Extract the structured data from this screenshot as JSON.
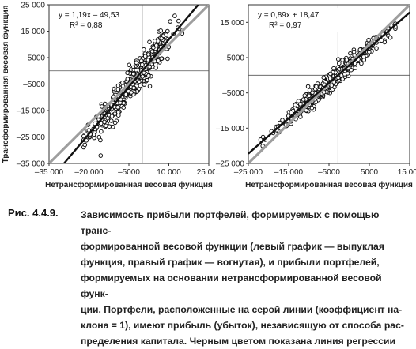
{
  "chart_data": [
    {
      "type": "scatter",
      "xlabel": "Нетрансформированная весовая функция",
      "ylabel": "Трансформированная весовая функция",
      "xlim": [
        -35000,
        25000
      ],
      "ylim": [
        -35000,
        25000
      ],
      "x_ticks": [
        "–35 000",
        "–20 000",
        "–5000",
        "10 000",
        "25 000"
      ],
      "y_ticks": [
        "25 000",
        "15 000",
        "5000",
        "–5000",
        "–15 000",
        "–25 000",
        "–35 000"
      ],
      "equation": "y = 1,19x – 49,53",
      "r_squared": "R² = 0,88",
      "regression": {
        "slope": 1.19,
        "intercept": -49.53
      },
      "reference_line": {
        "slope": 1,
        "intercept": 0
      },
      "grid": false,
      "legend": "none",
      "colors": {
        "regression": "#111111",
        "reference": "#9e9e9e",
        "points": "#111111"
      },
      "points": {
        "n": 450,
        "x_center": -4000,
        "x_sd": 7500,
        "y_noise_sd": 3200,
        "x_range": [
          -22000,
          15000
        ]
      }
    },
    {
      "type": "scatter",
      "xlabel": "Нетрансформированная весовая функция",
      "ylabel": "",
      "xlim": [
        -25000,
        20000
      ],
      "ylim": [
        -25000,
        20000
      ],
      "x_ticks": [
        "–25 000",
        "–15 000",
        "–5000",
        "5000",
        "15 000"
      ],
      "y_ticks": [
        "15 000",
        "5000",
        "–5000",
        "–15 000",
        "–25 000"
      ],
      "equation": "y = 0,89x + 18,47",
      "r_squared": "R² = 0,97",
      "regression": {
        "slope": 0.89,
        "intercept": 18.47
      },
      "reference_line": {
        "slope": 1,
        "intercept": 0
      },
      "grid": false,
      "legend": "none",
      "colors": {
        "regression": "#111111",
        "reference": "#9e9e9e",
        "points": "#111111"
      },
      "points": {
        "n": 450,
        "x_center": -1000,
        "x_sd": 7500,
        "y_noise_sd": 1300,
        "x_range": [
          -22000,
          16000
        ]
      }
    }
  ],
  "caption": {
    "label": "Рис. 4.4.9.",
    "lines": [
      "Зависимость прибыли портфелей, формируемых с помощью транс-",
      "формированной весовой функции (левый график — выпуклая",
      "функция, правый график — вогнутая), и прибыли портфелей,",
      "формируемых на основании нетрансформированной весовой функ-",
      "ции. Портфели, расположенные на серой линии (коэффициент на-",
      "клона = 1), имеют прибыль (убыток), независящую от способа рас-",
      "пределения капитала. Черным цветом показана линия регрессии"
    ]
  }
}
